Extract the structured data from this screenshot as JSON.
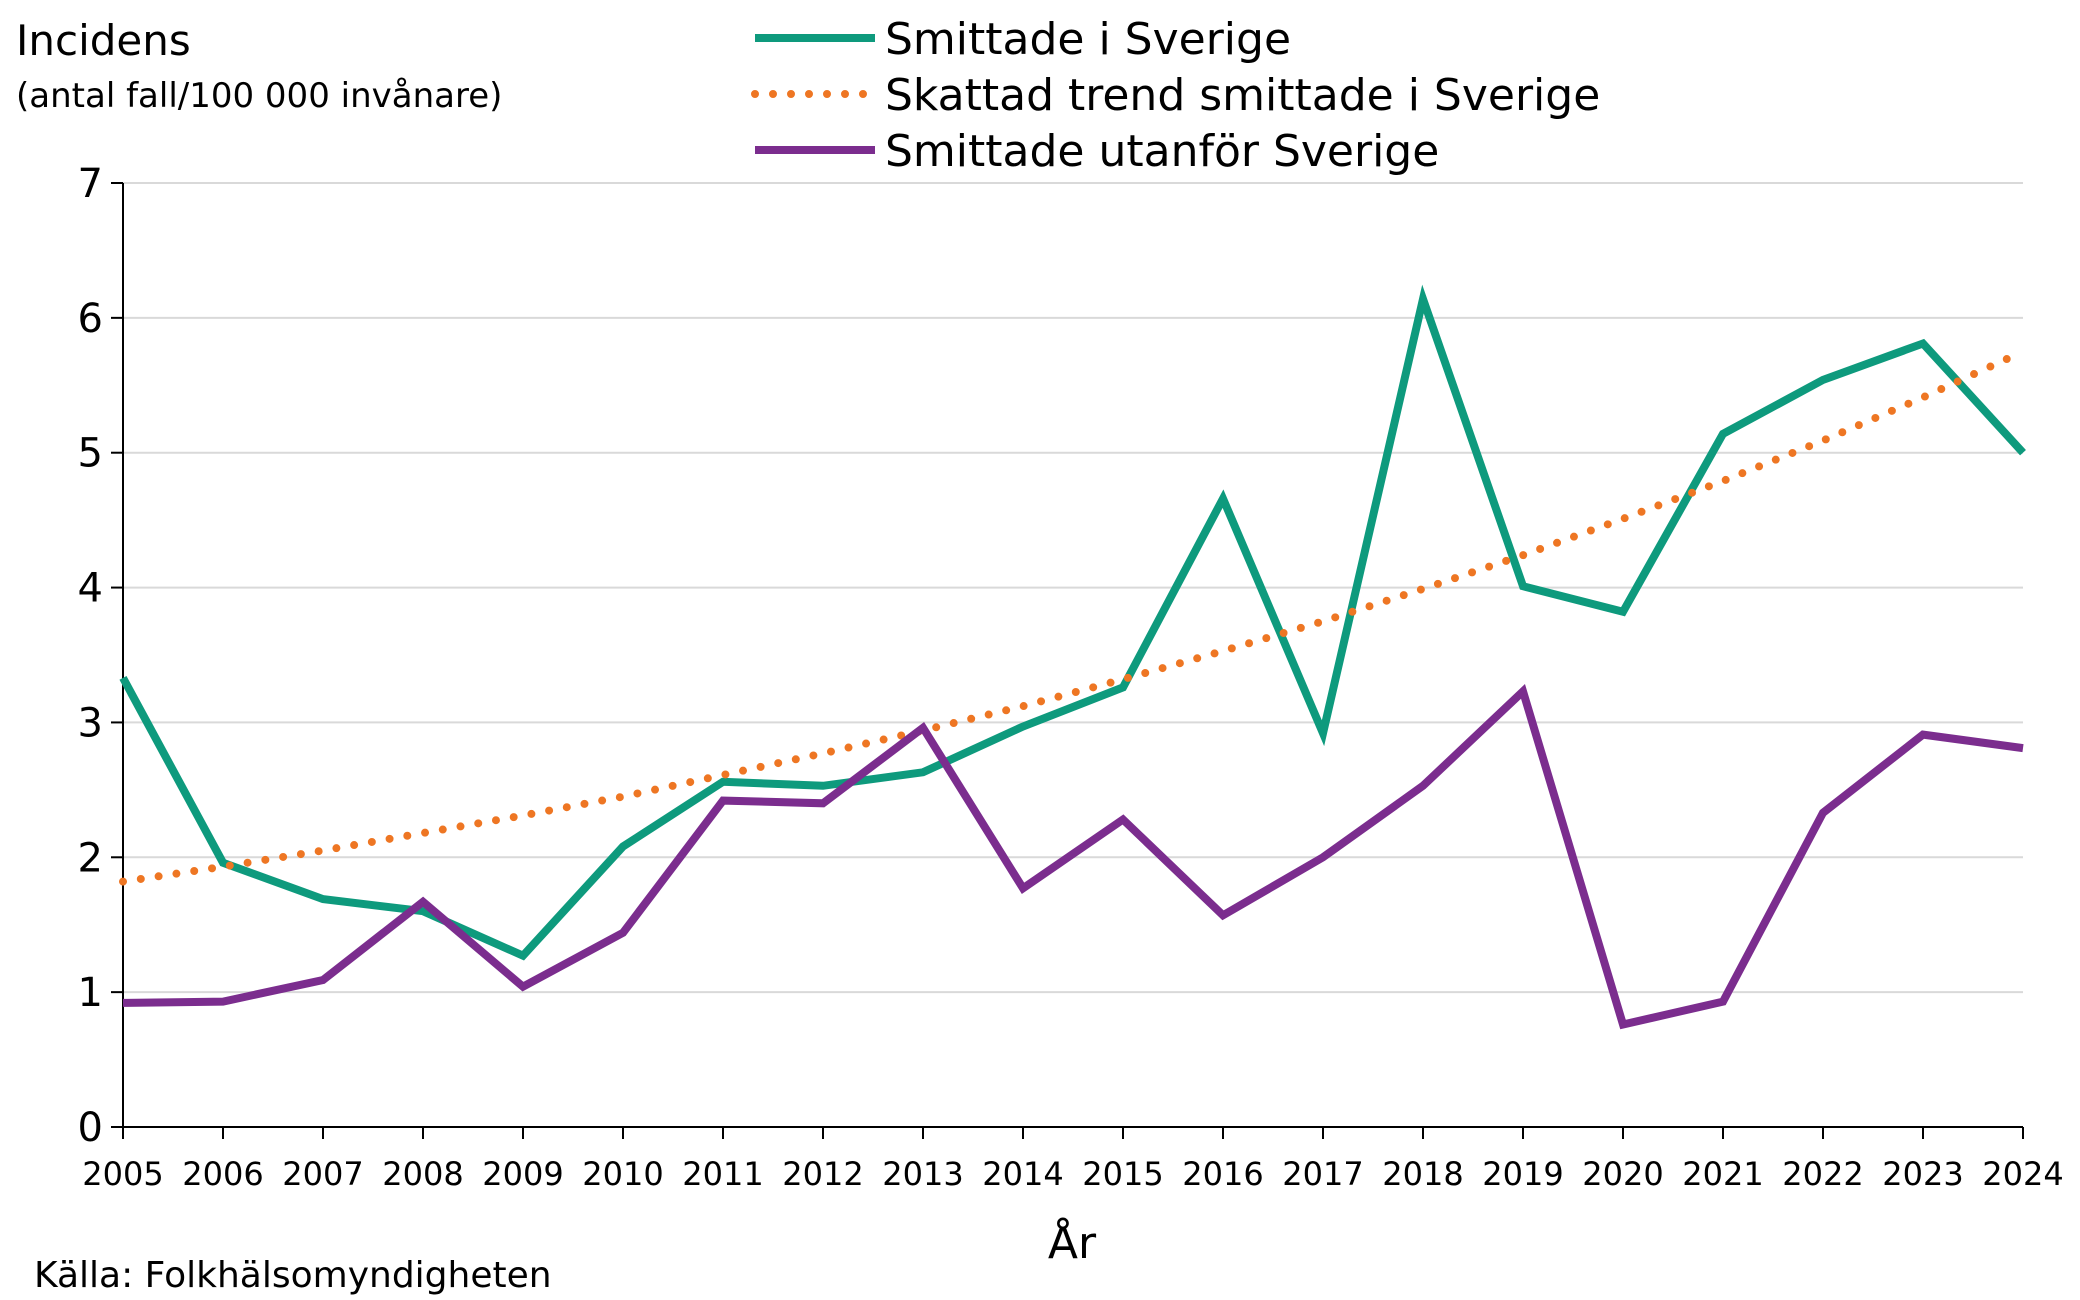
{
  "chart_data": {
    "type": "line",
    "ylabel_line1": "Incidens",
    "ylabel_line2": "(antal fall/100 000 invånare)",
    "xlabel": "År",
    "source": "Källa: Folkhälsomyndigheten",
    "ylim": [
      0,
      7
    ],
    "yticks": [
      "0",
      "1",
      "2",
      "3",
      "4",
      "5",
      "6",
      "7"
    ],
    "categories": [
      "2005",
      "2006",
      "2007",
      "2008",
      "2009",
      "2010",
      "2011",
      "2012",
      "2013",
      "2014",
      "2015",
      "2016",
      "2017",
      "2018",
      "2019",
      "2020",
      "2021",
      "2022",
      "2023",
      "2024"
    ],
    "series": [
      {
        "name": "Smittade i Sverige",
        "style": "solid",
        "color": "#0e9a7d",
        "values": [
          3.33,
          1.96,
          1.69,
          1.6,
          1.27,
          2.08,
          2.56,
          2.53,
          2.63,
          2.97,
          3.26,
          4.66,
          2.92,
          6.14,
          4.01,
          3.82,
          5.14,
          5.54,
          5.81,
          5.0
        ]
      },
      {
        "name": "Skattad trend smittade i Sverige",
        "style": "dotted",
        "color": "#ee7623",
        "values": [
          1.82,
          1.93,
          2.05,
          2.18,
          2.31,
          2.45,
          2.61,
          2.77,
          2.94,
          3.12,
          3.32,
          3.53,
          3.75,
          3.99,
          4.24,
          4.51,
          4.79,
          5.09,
          5.41,
          5.75
        ]
      },
      {
        "name": "Smittade utanför Sverige",
        "style": "solid",
        "color": "#7b2d8e",
        "values": [
          0.92,
          0.93,
          1.09,
          1.67,
          1.04,
          1.44,
          2.42,
          2.4,
          2.96,
          1.77,
          2.28,
          1.57,
          2.0,
          2.53,
          3.23,
          0.76,
          0.93,
          2.33,
          2.91,
          2.81
        ]
      }
    ],
    "grid": true,
    "legend_position": "top-center"
  }
}
